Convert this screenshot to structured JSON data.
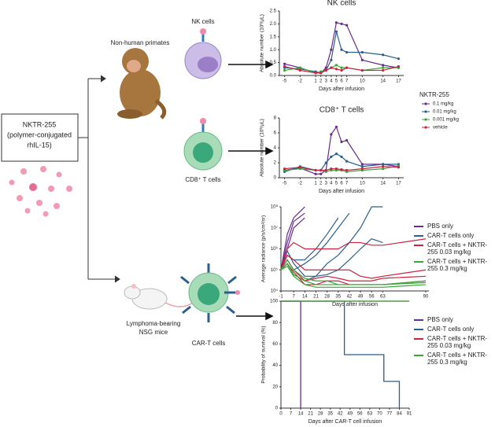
{
  "diagram": {
    "drug": [
      "NKTR-255",
      "(polymer-conjugated",
      "rhIL-15)"
    ],
    "primates": "Non-human primates",
    "nk_cells": "NK cells",
    "cd8_cells": "CD8⁺ T cells",
    "mice": [
      "Lymphoma-bearing",
      "NSG mice"
    ],
    "car_t_cells": "CAR-T cells"
  },
  "chart_data": [
    {
      "type": "line",
      "title": "NK cells",
      "xlabel": "Days after infusion",
      "ylabel": "Absolute number (10³/µL)",
      "markers": true,
      "x": [
        -5,
        -2,
        1,
        2,
        3,
        4,
        5,
        6,
        7,
        10,
        14,
        17
      ],
      "xlim": [
        -6,
        18
      ],
      "xticks": [
        -5,
        -2,
        1,
        2,
        3,
        4,
        5,
        6,
        7,
        10,
        14,
        17
      ],
      "ylim": [
        0,
        2.5
      ],
      "yticks": [
        {
          "value": 0,
          "label": "0.0"
        },
        0.5,
        {
          "value": 1,
          "label": "1.0"
        },
        1.5,
        {
          "value": 2,
          "label": "2.0"
        },
        2.5
      ],
      "legend_title": "NKTR-255",
      "series": [
        {
          "name": "0.1 mg/kg",
          "color": "#6a2c8e",
          "values": [
            0.45,
            0.3,
            0.1,
            0.1,
            0.3,
            1.0,
            2.05,
            2.0,
            1.95,
            0.6,
            0.4,
            0.3
          ]
        },
        {
          "name": "0.01 mg/kg",
          "color": "#2b5f8e",
          "values": [
            0.3,
            0.25,
            0.15,
            0.1,
            0.2,
            0.6,
            1.7,
            1.0,
            0.9,
            0.9,
            0.8,
            0.65
          ]
        },
        {
          "name": "0.001 mg/kg",
          "color": "#3aa63a",
          "values": [
            0.2,
            0.3,
            0.1,
            0.15,
            0.2,
            0.3,
            0.4,
            0.3,
            0.3,
            0.2,
            0.3,
            0.3
          ]
        },
        {
          "name": "vehicle",
          "color": "#cc2244",
          "values": [
            0.35,
            0.2,
            0.1,
            0.1,
            0.2,
            0.3,
            0.25,
            0.2,
            0.3,
            0.2,
            0.2,
            0.35
          ]
        }
      ]
    },
    {
      "type": "line",
      "title": "CD8⁺ T cells",
      "xlabel": "Days after infusion",
      "ylabel": "Absolute number (10³/µL)",
      "markers": true,
      "x": [
        -5,
        -2,
        1,
        2,
        3,
        4,
        5,
        6,
        7,
        10,
        14,
        17
      ],
      "xlim": [
        -6,
        18
      ],
      "xticks": [
        -5,
        -2,
        1,
        2,
        3,
        4,
        5,
        6,
        7,
        10,
        14,
        17
      ],
      "ylim": [
        0,
        8
      ],
      "yticks": [
        0,
        2,
        4,
        6,
        8
      ],
      "series": [
        {
          "color": "#6a2c8e",
          "values": [
            1,
            1.3,
            0.5,
            0.5,
            1,
            5.8,
            6.8,
            4.8,
            5,
            1.8,
            1.8,
            1.5
          ]
        },
        {
          "color": "#2b5f8e",
          "values": [
            0.8,
            1.5,
            1,
            1,
            2,
            2.8,
            3.2,
            2.8,
            2.2,
            1.5,
            1.8,
            1.8
          ]
        },
        {
          "color": "#3aa63a",
          "values": [
            1,
            1.2,
            1,
            1,
            0.8,
            1,
            1,
            1,
            0.8,
            1,
            1.2,
            1.6
          ]
        },
        {
          "color": "#cc2244",
          "values": [
            1.2,
            1.4,
            1,
            1,
            1,
            1.2,
            1.2,
            1.1,
            1,
            1.2,
            1.5,
            1.4
          ]
        }
      ]
    },
    {
      "type": "line",
      "xlabel": "Days after infusion",
      "ylabel": "Average radiance (p/s/cm²/sr)",
      "log": true,
      "x": [
        -1,
        3,
        7,
        14,
        21,
        28,
        35,
        42,
        49,
        56,
        63,
        90
      ],
      "xlim": [
        -1,
        92
      ],
      "xticks": [
        -1,
        7,
        14,
        21,
        28,
        35,
        42,
        49,
        56,
        63,
        90
      ],
      "ylim": [
        10000,
        100000000
      ],
      "yticks": [
        {
          "value": 10000,
          "label": "10⁴"
        },
        {
          "value": 100000,
          "label": "10⁵"
        },
        {
          "value": 1000000,
          "label": "10⁶"
        },
        {
          "value": 10000000,
          "label": "10⁷"
        },
        {
          "value": 100000000,
          "label": "10⁸"
        }
      ],
      "series": [
        {
          "name": "PBS only",
          "color": "#6a2c8e",
          "values": [
            [
              100000,
              5000000,
              30000000,
              100000000,
              null,
              null,
              null,
              null,
              null,
              null,
              null,
              null
            ],
            [
              100000,
              2000000,
              20000000,
              50000000,
              null,
              null,
              null,
              null,
              null,
              null,
              null,
              null
            ],
            [
              100000,
              1000000,
              10000000,
              30000000,
              null,
              null,
              null,
              null,
              null,
              null,
              null,
              null
            ]
          ]
        },
        {
          "name": "CAR-T cells only",
          "color": "#2b5f8e",
          "values": [
            [
              100000,
              300000,
              100000,
              200000,
              500000,
              2000000,
              10000000,
              50000000,
              null,
              null,
              null,
              null
            ],
            [
              100000,
              500000,
              300000,
              300000,
              1000000,
              5000000,
              30000000,
              null,
              null,
              null,
              null,
              null
            ],
            [
              100000,
              200000,
              60000,
              30000,
              50000,
              200000,
              500000,
              2000000,
              10000000,
              100000000,
              100000000,
              null
            ],
            [
              100000,
              800000,
              200000,
              50000,
              50000,
              60000,
              100000,
              300000,
              1000000,
              3000000,
              2000000,
              null
            ]
          ]
        },
        {
          "name": "CAR-T cells + NKTR-255 0.03 mg/kg",
          "color": "#cc2244",
          "values": [
            [
              100000,
              1000000,
              2000000,
              1000000,
              1000000,
              1000000,
              1000000,
              2000000,
              2000000,
              1500000,
              1500000,
              3000000
            ],
            [
              100000,
              500000,
              300000,
              100000,
              100000,
              100000,
              100000,
              100000,
              50000,
              40000,
              50000,
              100000
            ],
            [
              100000,
              300000,
              100000,
              30000,
              40000,
              50000,
              40000,
              30000,
              30000,
              30000,
              40000,
              50000
            ],
            [
              100000,
              200000,
              80000,
              20000,
              20000,
              30000,
              30000,
              20000,
              20000,
              20000,
              20000,
              30000
            ]
          ]
        },
        {
          "name": "CAR-T cells + NKTR-255 0.3 mg/kg",
          "color": "#3aa63a",
          "values": [
            [
              100000,
              200000,
              60000,
              30000,
              20000,
              20000,
              20000,
              20000,
              20000,
              20000,
              20000,
              30000
            ],
            [
              100000,
              150000,
              50000,
              20000,
              15000,
              15000,
              15000,
              15000,
              15000,
              15000,
              15000,
              20000
            ],
            [
              100000,
              300000,
              100000,
              40000,
              30000,
              30000,
              20000,
              20000,
              20000,
              20000,
              20000,
              25000
            ]
          ]
        }
      ]
    },
    {
      "type": "step",
      "xlabel": "Days after CAR-T cell infusion",
      "ylabel": "Probability of survival (%)",
      "xlim": [
        0,
        91
      ],
      "xticks": [
        0,
        7,
        14,
        21,
        28,
        35,
        42,
        49,
        56,
        63,
        70,
        77,
        84,
        91
      ],
      "ylim": [
        0,
        100
      ],
      "yticks": [
        0,
        20,
        40,
        60,
        80,
        100
      ],
      "series": [
        {
          "name": "PBS only",
          "color": "#6a2c8e",
          "x": [
            0,
            14
          ],
          "values": [
            100,
            0
          ]
        },
        {
          "name": "CAR-T cells only",
          "color": "#2b5f8e",
          "x": [
            0,
            45,
            73,
            84
          ],
          "values": [
            100,
            50,
            25,
            0
          ]
        },
        {
          "name": "CAR-T cells + NKTR-255 0.03 mg/kg",
          "color": "#cc2244",
          "x": [
            0,
            91
          ],
          "values": [
            100,
            100
          ]
        },
        {
          "name": "CAR-T cells + NKTR-255 0.3 mg/kg",
          "color": "#3aa63a",
          "x": [
            0,
            91
          ],
          "values": [
            100,
            100
          ]
        }
      ]
    }
  ]
}
